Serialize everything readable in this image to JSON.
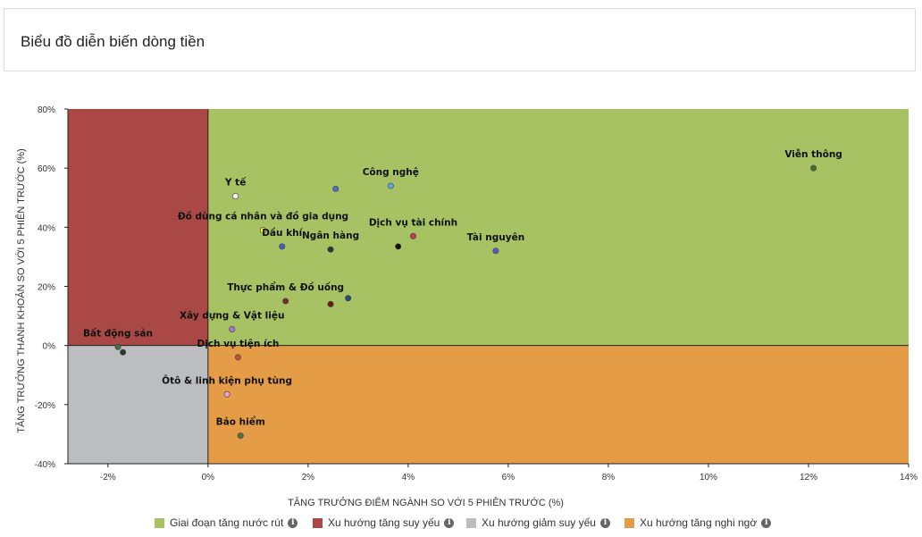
{
  "header": {
    "title": "Biểu đồ diễn biến dòng tiền"
  },
  "colors": {
    "green": "#a6c262",
    "red": "#aa4845",
    "gray": "#bcbdc0",
    "orange": "#e59c47"
  },
  "legend": [
    {
      "label": "Giai đoạn tăng nước rút",
      "color": "#a6c262",
      "icon": "info-icon"
    },
    {
      "label": "Xu hướng tăng suy yếu",
      "color": "#aa4845",
      "icon": "info-icon"
    },
    {
      "label": "Xu hướng giảm suy yếu",
      "color": "#bcbdc0",
      "icon": "info-icon"
    },
    {
      "label": "Xu hướng tăng nghi ngờ",
      "color": "#e59c47",
      "icon": "info-icon"
    }
  ],
  "chart_data": {
    "type": "scatter",
    "xlabel": "TĂNG TRƯỞNG ĐIỂM NGÀNH SO VỚI 5 PHIÊN TRƯỚC (%)",
    "ylabel": "TĂNG TRƯỞNG THANH KHOẢN SO VỚI 5 PHIÊN TRƯỚC (%)",
    "xlim": [
      -2.8,
      14
    ],
    "ylim": [
      -40,
      80
    ],
    "xticks": [
      -2,
      0,
      2,
      4,
      6,
      8,
      10,
      12,
      14
    ],
    "xtick_labels": [
      "-2%",
      "0%",
      "2%",
      "4%",
      "6%",
      "8%",
      "10%",
      "12%",
      "14%"
    ],
    "yticks": [
      -40,
      -20,
      0,
      20,
      40,
      60,
      80
    ],
    "ytick_labels": [
      "-40%",
      "-20%",
      "0%",
      "20%",
      "40%",
      "60%",
      "80%"
    ],
    "grid": false,
    "legend_position": "bottom",
    "quadrants": [
      {
        "name": "Giai đoạn tăng nước rút",
        "x": [
          0,
          14
        ],
        "y": [
          0,
          80
        ],
        "color": "#a6c262"
      },
      {
        "name": "Xu hướng tăng suy yếu",
        "x": [
          -2.8,
          0
        ],
        "y": [
          0,
          80
        ],
        "color": "#aa4845"
      },
      {
        "name": "Xu hướng giảm suy yếu",
        "x": [
          -2.8,
          0
        ],
        "y": [
          -40,
          0
        ],
        "color": "#bcbdc0"
      },
      {
        "name": "Xu hướng tăng nghi ngờ",
        "x": [
          0,
          14
        ],
        "y": [
          -40,
          0
        ],
        "color": "#e59c47"
      }
    ],
    "labeled_points": [
      {
        "label": "Viễn thông",
        "x": 12.1,
        "y": 60,
        "color": "#4a6b36"
      },
      {
        "label": "Công nghệ",
        "x": 3.65,
        "y": 54,
        "color": "#5aa7e0"
      },
      {
        "label": "Y tế",
        "x": 0.55,
        "y": 50.5,
        "color": "#f2f2f2"
      },
      {
        "label": "Đồ dùng cá nhân và đồ gia dụng",
        "x": 1.1,
        "y": 39,
        "color": "#f5e642"
      },
      {
        "label": "Dịch vụ tài chính",
        "x": 4.1,
        "y": 37,
        "color": "#c43a4a"
      },
      {
        "label": "Dầu khí",
        "x": 1.48,
        "y": 33.5,
        "color": "#3f5fbf"
      },
      {
        "label": "Ngân hàng",
        "x": 2.45,
        "y": 32.5,
        "color": "#333333"
      },
      {
        "label": "Tài nguyên",
        "x": 5.75,
        "y": 32,
        "color": "#4d5fc4"
      },
      {
        "label": "Thực phẩm & Đồ uống",
        "x": 1.55,
        "y": 15,
        "color": "#7a2a2a"
      },
      {
        "label": "Xây dựng & Vật liệu",
        "x": 0.48,
        "y": 5.5,
        "color": "#a675d0"
      },
      {
        "label": "Bất động sản",
        "x": -1.8,
        "y": -0.5,
        "color": "#4a6b4a"
      },
      {
        "label": "Dịch vụ tiện ích",
        "x": 0.6,
        "y": -4,
        "color": "#c0503a"
      },
      {
        "label": "Ôtô & linh kiện phụ tùng",
        "x": 0.38,
        "y": -16.5,
        "color": "#e7a0d0"
      },
      {
        "label": "Bảo hiểm",
        "x": 0.65,
        "y": -30.5,
        "color": "#5a6b4a"
      }
    ],
    "unlabeled_points": [
      {
        "x": 2.55,
        "y": 53,
        "color": "#4d6fb8"
      },
      {
        "x": 3.8,
        "y": 33.5,
        "color": "#111111"
      },
      {
        "x": 2.45,
        "y": 14,
        "color": "#6a1a1a"
      },
      {
        "x": 2.8,
        "y": 16,
        "color": "#2d4a7a"
      },
      {
        "x": -1.7,
        "y": -2.3,
        "color": "#2a3a2a"
      }
    ]
  }
}
